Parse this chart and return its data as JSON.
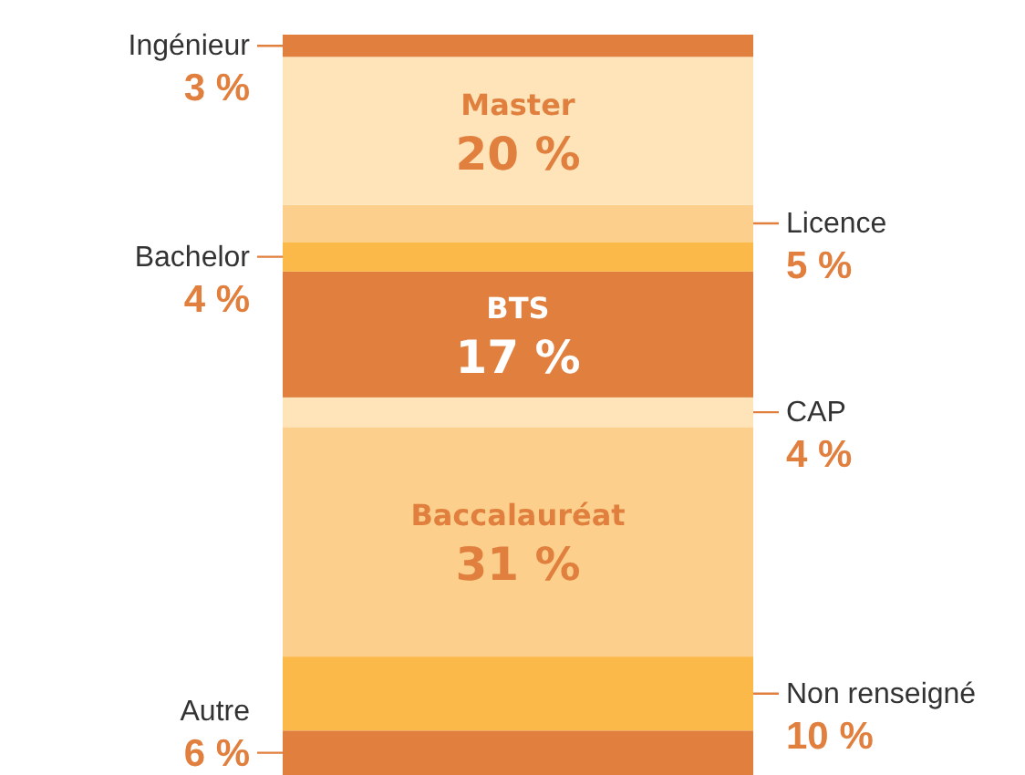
{
  "chart_data": {
    "type": "bar",
    "stacked": true,
    "categories": [
      null
    ],
    "series": [
      {
        "name": "Autre",
        "color": "#e07f3e",
        "values": [
          6
        ],
        "value_labels": [
          "6 %"
        ]
      },
      {
        "name": "Non renseigné",
        "color": "#fbb94a",
        "values": [
          10
        ],
        "value_labels": [
          "10 %"
        ]
      },
      {
        "name": "Baccalauréat",
        "color": "#fcd08c",
        "values": [
          31
        ],
        "value_labels": [
          "31 %"
        ]
      },
      {
        "name": "CAP",
        "color": "#fee4b8",
        "values": [
          4
        ],
        "value_labels": [
          "4 %"
        ]
      },
      {
        "name": "BTS",
        "color": "#e07f3e",
        "values": [
          17
        ],
        "value_labels": [
          "17 %"
        ]
      },
      {
        "name": "Bachelor",
        "color": "#fbb94a",
        "values": [
          4
        ],
        "value_labels": [
          "4 %"
        ]
      },
      {
        "name": "Licence",
        "color": "#fcd08c",
        "values": [
          5
        ],
        "value_labels": [
          "5 %"
        ]
      },
      {
        "name": "Master",
        "color": "#fee4b8",
        "values": [
          20
        ],
        "value_labels": [
          "20 %"
        ]
      },
      {
        "name": "Ingénieur",
        "color": "#e07f3e",
        "values": [
          3
        ],
        "value_labels": [
          "3 %"
        ]
      }
    ]
  }
}
